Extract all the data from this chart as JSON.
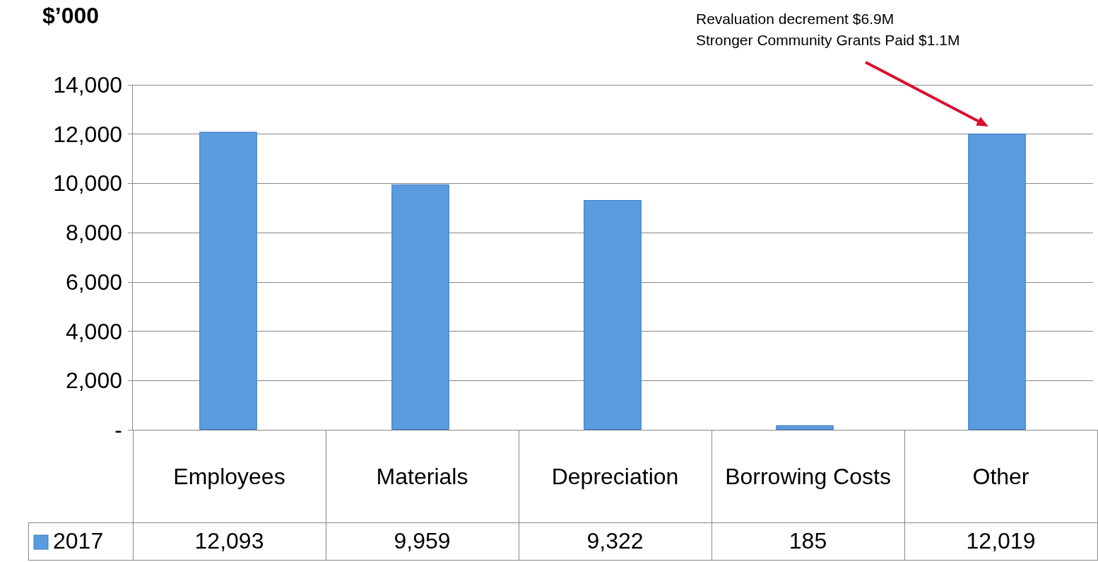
{
  "chart_data": {
    "type": "bar",
    "ylabel": "$’000",
    "categories": [
      "Employees",
      "Materials",
      "Depreciation",
      "Borrowing Costs",
      "Other"
    ],
    "series": [
      {
        "name": "2017",
        "color": "#5b9bdf",
        "values": [
          12093,
          9959,
          9322,
          185,
          12019
        ]
      }
    ],
    "value_labels": [
      "12,093",
      "9,959",
      "9,322",
      "185",
      "12,019"
    ],
    "ylim": [
      0,
      14000
    ],
    "yticks": [
      {
        "value": 0,
        "label": "-"
      },
      {
        "value": 2000,
        "label": "2,000"
      },
      {
        "value": 4000,
        "label": "4,000"
      },
      {
        "value": 6000,
        "label": "6,000"
      },
      {
        "value": 8000,
        "label": "8,000"
      },
      {
        "value": 10000,
        "label": "10,000"
      },
      {
        "value": 12000,
        "label": "12,000"
      },
      {
        "value": 14000,
        "label": "14,000"
      }
    ],
    "grid": "y",
    "legend": "bottom left",
    "annotations": [
      "Revaluation decrement $6.9M\nStronger Community Grants Paid $1.1M"
    ]
  }
}
